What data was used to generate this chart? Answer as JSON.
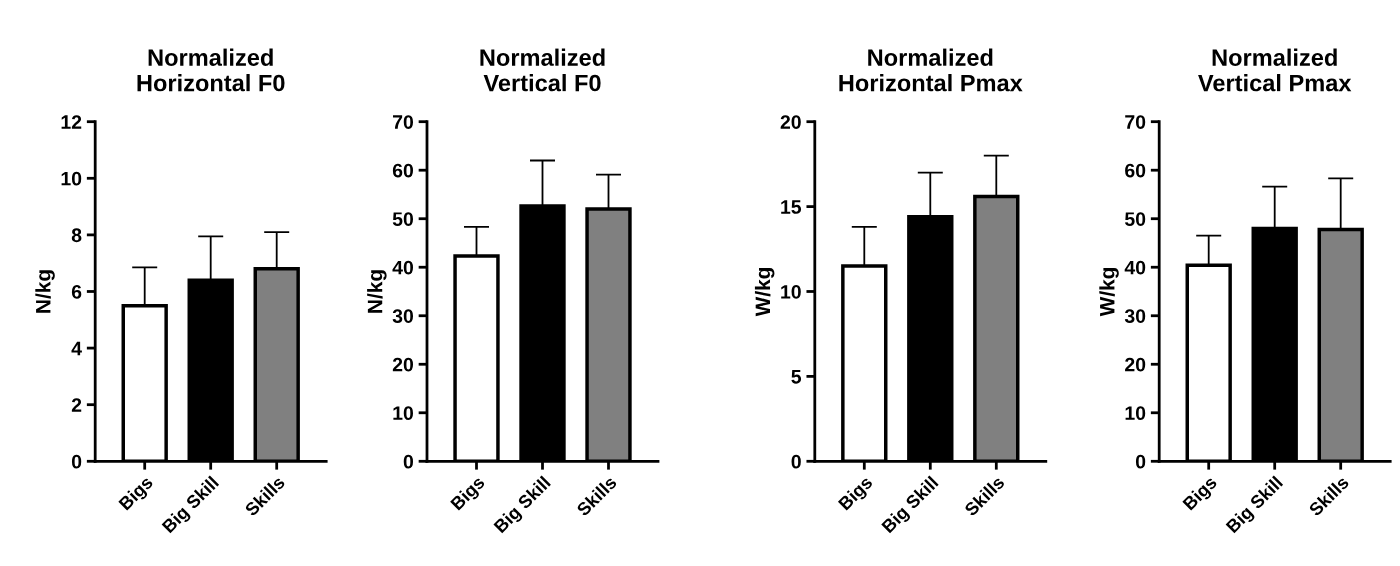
{
  "chart_data": [
    {
      "type": "bar",
      "title": "Normalized\nHorizontal F0",
      "ylabel": "N/kg",
      "categories": [
        "Bigs",
        "Big Skill",
        "Skills"
      ],
      "values": [
        5.5,
        6.4,
        6.8
      ],
      "colors": [
        "#ffffff",
        "#000000",
        "#808080"
      ],
      "errors": [
        [
          5.5,
          6.85
        ],
        [
          6.4,
          7.95
        ],
        [
          6.8,
          8.1
        ]
      ],
      "ylim": [
        0,
        12
      ],
      "yticks": [
        0,
        2,
        4,
        6,
        8,
        10,
        12
      ],
      "grid": false
    },
    {
      "type": "bar",
      "title": "Normalized\nVertical F0",
      "ylabel": "N/kg",
      "categories": [
        "Bigs",
        "Big Skill",
        "Skills"
      ],
      "values": [
        42.3,
        52.6,
        52
      ],
      "colors": [
        "#ffffff",
        "#000000",
        "#808080"
      ],
      "errors": [
        [
          42.3,
          48.3
        ],
        [
          52.6,
          62
        ],
        [
          52,
          59.1
        ]
      ],
      "ylim": [
        0,
        70
      ],
      "yticks": [
        0,
        10,
        20,
        30,
        40,
        50,
        60,
        70
      ],
      "grid": false
    },
    {
      "type": "bar",
      "title": "Normalized\nHorizontal Pmax",
      "ylabel": "W/kg",
      "categories": [
        "Bigs",
        "Big Skill",
        "Skills"
      ],
      "values": [
        11.5,
        14.4,
        15.6
      ],
      "colors": [
        "#ffffff",
        "#000000",
        "#808080"
      ],
      "errors": [
        [
          11.5,
          13.8
        ],
        [
          14.4,
          17
        ],
        [
          15.6,
          18
        ]
      ],
      "ylim": [
        0,
        20
      ],
      "yticks": [
        0,
        5,
        10,
        15,
        20
      ],
      "grid": false
    },
    {
      "type": "bar",
      "title": "Normalized\nVertical Pmax",
      "ylabel": "W/kg",
      "categories": [
        "Bigs",
        "Big Skill",
        "Skills"
      ],
      "values": [
        40.4,
        48,
        47.8
      ],
      "colors": [
        "#ffffff",
        "#000000",
        "#808080"
      ],
      "errors": [
        [
          40.4,
          46.5
        ],
        [
          48,
          56.6
        ],
        [
          47.8,
          58.3
        ]
      ],
      "ylim": [
        0,
        70
      ],
      "yticks": [
        0,
        10,
        20,
        30,
        40,
        50,
        60,
        70
      ],
      "grid": false
    }
  ]
}
